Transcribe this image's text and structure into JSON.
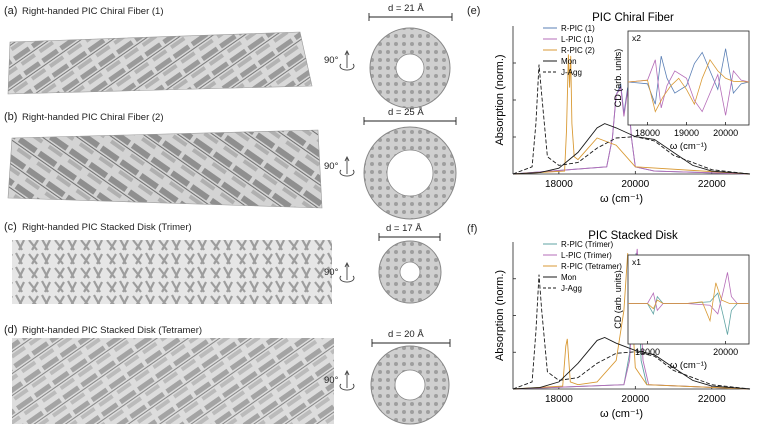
{
  "panels": {
    "a": {
      "letter": "(a)",
      "title": "Right-handed PIC Chiral Fiber (1)",
      "diameter": "d = 21 Å",
      "rotation": "90°"
    },
    "b": {
      "letter": "(b)",
      "title": "Right-handed PIC Chiral Fiber (2)",
      "diameter": "d = 25 Å",
      "rotation": "90°"
    },
    "c": {
      "letter": "(c)",
      "title": "Right-handed PIC Stacked Disk (Trimer)",
      "diameter": "d = 17 Å",
      "rotation": "90°"
    },
    "d": {
      "letter": "(d)",
      "title": "Right-handed PIC Stacked Disk (Tetramer)",
      "diameter": "d = 20 Å",
      "rotation": "90°"
    },
    "e": {
      "letter": "(e)"
    },
    "f": {
      "letter": "(f)"
    }
  },
  "colors": {
    "blue": "#5a7fb5",
    "purple": "#b56cb8",
    "orange": "#d99a35",
    "black": "#1a1a1a",
    "teal": "#5fa3a3"
  },
  "chart_data": [
    {
      "type": "line",
      "title": "PIC Chiral Fiber",
      "xlabel": "ω (cm⁻¹)",
      "ylabel": "Absorption (norm.)",
      "xlim": [
        16800,
        23000
      ],
      "x_ticks": [
        "18000",
        "20000",
        "22000"
      ],
      "legend": [
        "R-PIC (1)",
        "L-PIC (1)",
        "R-PIC (2)",
        "Mon",
        "J-Agg"
      ],
      "series": [
        {
          "name": "R-PIC (1)",
          "color": "#5a7fb5",
          "x": [
            16800,
            19250,
            19400,
            19500,
            19620,
            19700,
            19800,
            19900,
            20000,
            20500,
            23000
          ],
          "y": [
            0,
            0.05,
            0.25,
            0.55,
            0.62,
            0.42,
            0.6,
            0.25,
            0.05,
            0.02,
            0
          ]
        },
        {
          "name": "L-PIC (1)",
          "color": "#b56cb8",
          "x": [
            16800,
            19250,
            19400,
            19500,
            19620,
            19700,
            19800,
            19900,
            20000,
            20500,
            23000
          ],
          "y": [
            0,
            0.05,
            0.25,
            0.55,
            0.6,
            0.4,
            0.58,
            0.25,
            0.05,
            0.02,
            0
          ]
        },
        {
          "name": "R-PIC (2)",
          "color": "#d99a35",
          "x": [
            16800,
            18150,
            18200,
            18250,
            18280,
            18310,
            18340,
            18400,
            18500,
            19000,
            19500,
            20000,
            23000
          ],
          "y": [
            0,
            0.02,
            0.3,
            0.83,
            0.6,
            0.82,
            0.35,
            0.12,
            0.1,
            0.25,
            0.2,
            0.05,
            0
          ]
        },
        {
          "name": "Mon",
          "color": "#1a1a1a",
          "x": [
            16800,
            17500,
            18000,
            18500,
            19000,
            19200,
            19500,
            20000,
            20500,
            21000,
            21500,
            22000,
            23000
          ],
          "y": [
            0,
            0.01,
            0.04,
            0.15,
            0.32,
            0.35,
            0.32,
            0.26,
            0.24,
            0.15,
            0.06,
            0.02,
            0
          ]
        },
        {
          "name": "J-Agg",
          "color": "#1a1a1a",
          "dashed": true,
          "x": [
            16800,
            17300,
            17400,
            17480,
            17550,
            17700,
            18000,
            18500,
            19000,
            19500,
            20000,
            20500,
            21000,
            22000,
            23000
          ],
          "y": [
            0,
            0.05,
            0.35,
            0.76,
            0.55,
            0.12,
            0.06,
            0.08,
            0.18,
            0.25,
            0.26,
            0.23,
            0.13,
            0.03,
            0
          ]
        }
      ],
      "inset": {
        "label": "x2",
        "xlabel": "ω (cm⁻¹)",
        "ylabel": "CD (arb. units)",
        "xlim": [
          17500,
          20600
        ],
        "x_ticks": [
          "18000",
          "19000",
          "20000"
        ],
        "series": [
          {
            "name": "R-PIC (1)",
            "color": "#5a7fb5",
            "x": [
              17500,
              18000,
              18200,
              18350,
              18500,
              18700,
              19000,
              19200,
              19400,
              19600,
              19800,
              20000,
              20200,
              20400,
              20600
            ],
            "y": [
              0,
              -0.05,
              -0.6,
              0.7,
              0.1,
              -0.3,
              -0.1,
              0.5,
              0.8,
              0.3,
              -0.2,
              0.9,
              -0.3,
              -0.05,
              0
            ]
          },
          {
            "name": "L-PIC (1)",
            "color": "#b56cb8",
            "x": [
              17500,
              18000,
              18200,
              18350,
              18500,
              18700,
              19000,
              19200,
              19400,
              19600,
              19800,
              20000,
              20200,
              20400,
              20600
            ],
            "y": [
              0,
              0.05,
              0.6,
              -0.7,
              -0.1,
              0.3,
              0.1,
              -0.5,
              -0.8,
              -0.3,
              0.2,
              -0.9,
              0.3,
              0.05,
              0
            ]
          },
          {
            "name": "R-PIC (2)",
            "color": "#d99a35",
            "x": [
              17500,
              18000,
              18200,
              18400,
              18600,
              18800,
              19000,
              19200,
              19400,
              19600,
              19800,
              20000,
              20200,
              20600
            ],
            "y": [
              0,
              0.05,
              -0.8,
              -0.4,
              -0.1,
              0.1,
              -0.2,
              -0.6,
              0.1,
              0.6,
              0.3,
              0.1,
              0.02,
              0
            ]
          }
        ]
      }
    },
    {
      "type": "line",
      "title": "PIC Stacked Disk",
      "xlabel": "ω (cm⁻¹)",
      "ylabel": "Absorption (norm.)",
      "xlim": [
        16800,
        23000
      ],
      "x_ticks": [
        "18000",
        "20000",
        "22000"
      ],
      "legend": [
        "R-PIC (Trimer)",
        "L-PIC (Trimer)",
        "R-PIC (Tetramer)",
        "Mon",
        "J-Agg"
      ],
      "series": [
        {
          "name": "R-PIC (Trimer)",
          "color": "#5fa3a3",
          "x": [
            16800,
            19700,
            19850,
            19950,
            20020,
            20080,
            20150,
            20300,
            23000
          ],
          "y": [
            0,
            0.03,
            0.25,
            0.8,
            0.95,
            0.7,
            0.2,
            0.03,
            0
          ]
        },
        {
          "name": "L-PIC (Trimer)",
          "color": "#b56cb8",
          "x": [
            16800,
            19700,
            19850,
            19950,
            20050,
            20100,
            20200,
            20350,
            23000
          ],
          "y": [
            0,
            0.03,
            0.2,
            0.7,
            0.98,
            0.75,
            0.2,
            0.03,
            0
          ]
        },
        {
          "name": "R-PIC (Tetramer)",
          "color": "#d99a35",
          "x": [
            16800,
            18100,
            18180,
            18220,
            18300,
            18500,
            19000,
            19500,
            19700,
            19800,
            19900,
            20000,
            20300,
            23000
          ],
          "y": [
            0,
            0.02,
            0.3,
            0.35,
            0.05,
            0.03,
            0.05,
            0.2,
            0.55,
            0.95,
            0.6,
            0.15,
            0.03,
            0
          ]
        },
        {
          "name": "Mon",
          "color": "#1a1a1a",
          "x": [
            16800,
            17500,
            18000,
            18500,
            19000,
            19200,
            19500,
            20000,
            20500,
            21000,
            21500,
            22000,
            23000
          ],
          "y": [
            0,
            0.01,
            0.05,
            0.18,
            0.34,
            0.36,
            0.32,
            0.27,
            0.24,
            0.15,
            0.06,
            0.02,
            0
          ]
        },
        {
          "name": "J-Agg",
          "color": "#1a1a1a",
          "dashed": true,
          "x": [
            16800,
            17300,
            17400,
            17480,
            17550,
            17700,
            18000,
            18500,
            19000,
            19500,
            20000,
            20500,
            21000,
            22000,
            23000
          ],
          "y": [
            0,
            0.05,
            0.4,
            0.8,
            0.55,
            0.12,
            0.06,
            0.08,
            0.18,
            0.25,
            0.26,
            0.23,
            0.13,
            0.03,
            0
          ]
        }
      ],
      "inset": {
        "label": "x1",
        "xlabel": "ω (cm⁻¹)",
        "ylabel": "CD (arb. units)",
        "xlim": [
          17500,
          20600
        ],
        "x_ticks": [
          "18000",
          "20000"
        ],
        "series": [
          {
            "name": "R-PIC (Trimer)",
            "color": "#5fa3a3",
            "x": [
              17500,
              18000,
              18150,
              18250,
              18400,
              19000,
              19600,
              19800,
              19950,
              20050,
              20150,
              20300,
              20600
            ],
            "y": [
              0,
              0,
              -0.3,
              0.2,
              0,
              0,
              0.05,
              0.3,
              -0.4,
              -0.9,
              -0.2,
              0,
              0
            ]
          },
          {
            "name": "L-PIC (Trimer)",
            "color": "#b56cb8",
            "x": [
              17500,
              18000,
              18150,
              18250,
              18400,
              19000,
              19600,
              19800,
              19950,
              20050,
              20150,
              20300,
              20600
            ],
            "y": [
              0,
              0,
              0.3,
              -0.2,
              0,
              0,
              -0.05,
              -0.3,
              0.4,
              0.9,
              0.2,
              0,
              0
            ]
          },
          {
            "name": "R-PIC (Tetramer)",
            "color": "#d99a35",
            "x": [
              17500,
              18000,
              18150,
              18250,
              18400,
              19000,
              19400,
              19600,
              19750,
              19900,
              20100,
              20600
            ],
            "y": [
              0,
              0,
              -0.15,
              0.1,
              0,
              0,
              0.05,
              -0.5,
              0.6,
              0.1,
              0,
              0
            ]
          }
        ]
      }
    }
  ]
}
